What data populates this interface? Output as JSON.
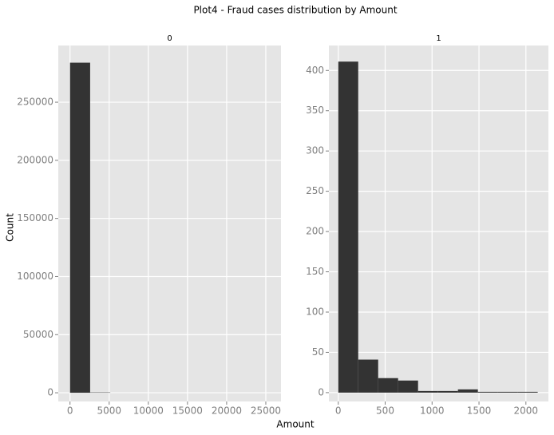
{
  "title": "Plot4 - Fraud cases distribution by Amount",
  "x_label": "Amount",
  "y_label": "Count",
  "chart_data": [
    {
      "type": "histogram",
      "title": "0",
      "color": "#333333",
      "grid": true,
      "bins": [
        0,
        2569.1,
        5138.2,
        7707.3,
        10276.4,
        12845.5,
        15414.6,
        17983.7,
        20552.8,
        23121.9,
        25691
      ],
      "values": [
        284000,
        300,
        10,
        3,
        1,
        0,
        0,
        0,
        0,
        1
      ],
      "xlim": [
        -1500,
        26940
      ],
      "ylim": [
        -7500,
        298800
      ],
      "xticks": [
        0,
        5000,
        10000,
        15000,
        20000,
        25000
      ],
      "yticks": [
        0,
        50000,
        100000,
        150000,
        200000,
        250000
      ]
    },
    {
      "type": "histogram",
      "title": "1",
      "color": "#333333",
      "grid": true,
      "bins": [
        0,
        212.6,
        425.2,
        637.8,
        850.4,
        1063,
        1275.6,
        1488.2,
        1700.8,
        1913.4,
        2126
      ],
      "values": [
        411,
        41,
        18,
        15,
        2,
        2,
        4,
        1,
        1,
        1
      ],
      "xlim": [
        -100,
        2240
      ],
      "ylim": [
        -11,
        431
      ],
      "xticks": [
        0,
        500,
        1000,
        1500,
        2000
      ],
      "yticks": [
        0,
        50,
        100,
        150,
        200,
        250,
        300,
        350,
        400
      ]
    }
  ]
}
